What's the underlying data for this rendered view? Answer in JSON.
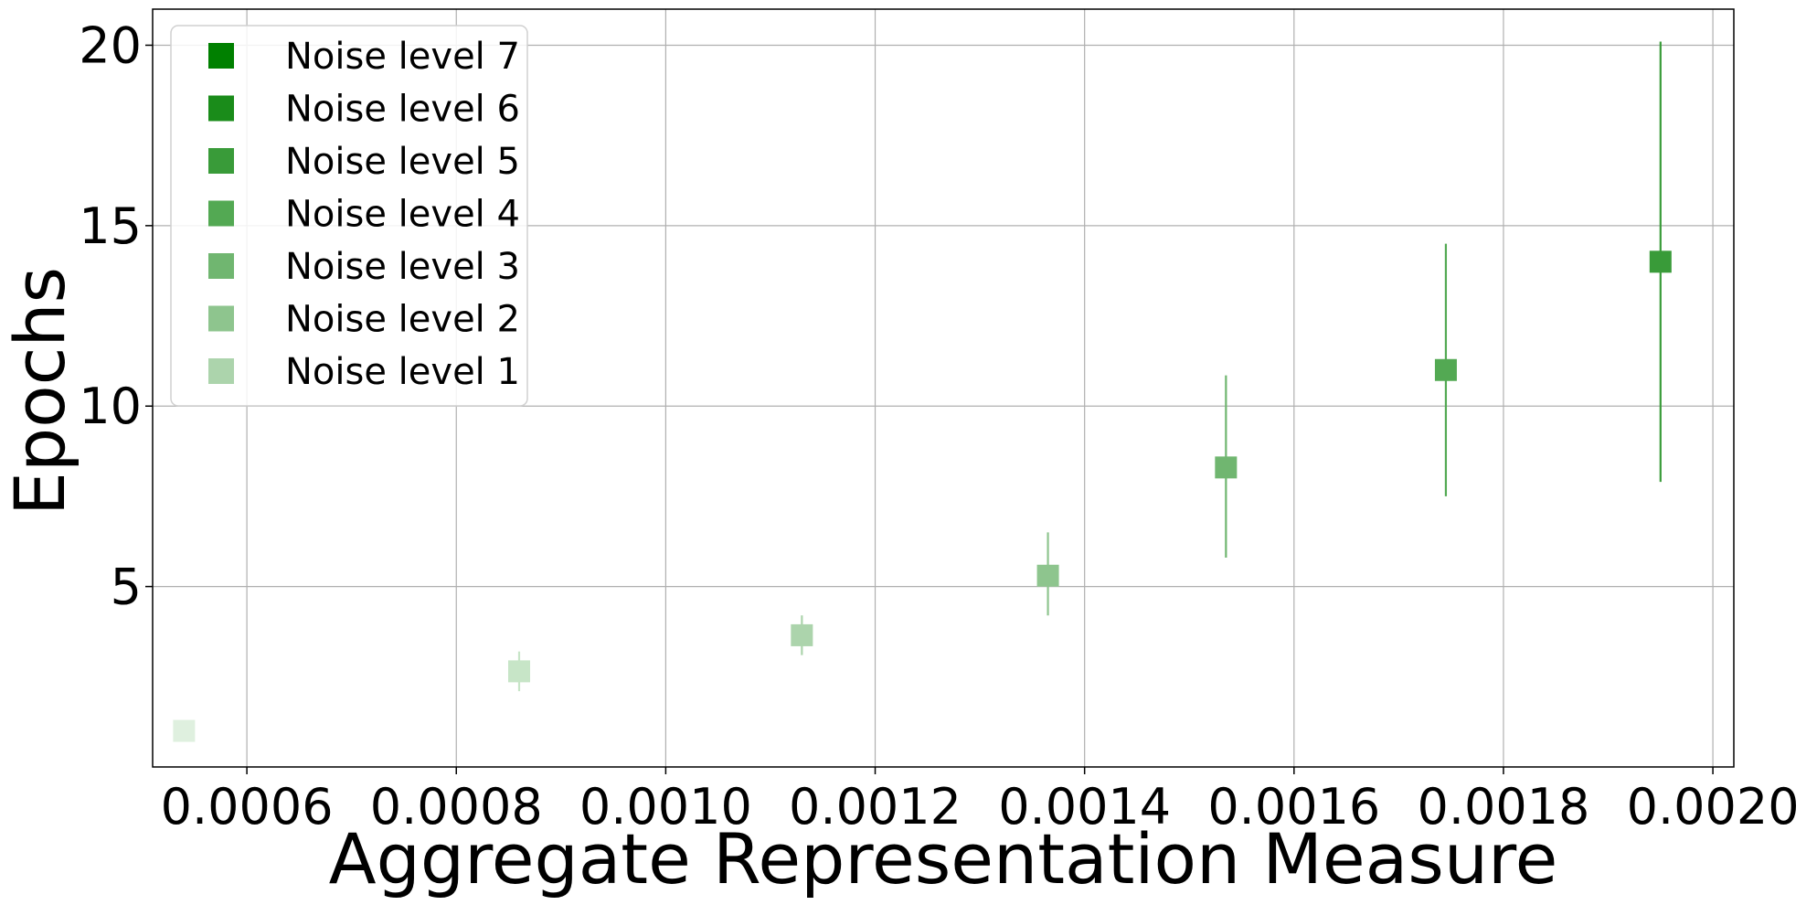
{
  "chart_data": {
    "type": "scatter",
    "title": "",
    "xlabel": "Aggregate Representation Measure",
    "ylabel": "Epochs",
    "xlim": [
      0.00051,
      0.00202
    ],
    "ylim": [
      0,
      21
    ],
    "xticks": [
      "0.0006",
      "0.0008",
      "0.0010",
      "0.0012",
      "0.0014",
      "0.0016",
      "0.0018",
      "0.0020"
    ],
    "yticks": [
      "5",
      "10",
      "15",
      "20"
    ],
    "grid": true,
    "legend_placement": "upper left",
    "series": [
      {
        "name": "Noise level 7",
        "color": "#008000",
        "marker": "square",
        "points": []
      },
      {
        "name": "Noise level 6",
        "color": "#1a8c1a",
        "marker": "square",
        "points": []
      },
      {
        "name": "Noise level 5",
        "color": "#399b39",
        "marker": "square",
        "points": []
      },
      {
        "name": "Noise level 4",
        "color": "#53a953",
        "marker": "square",
        "points": []
      },
      {
        "name": "Noise level 3",
        "color": "#70b670",
        "marker": "square",
        "points": []
      },
      {
        "name": "Noise level 2",
        "color": "#8ec58e",
        "marker": "square",
        "points": []
      },
      {
        "name": "Noise level 1",
        "color": "#acd4ac",
        "marker": "square",
        "points": []
      }
    ],
    "points": [
      {
        "x": 0.00054,
        "y": 1.0,
        "ymin": 1.0,
        "ymax": 1.0,
        "color": "#dff0df"
      },
      {
        "x": 0.00086,
        "y": 2.65,
        "ymin": 2.1,
        "ymax": 3.2,
        "color": "#c7e5c7"
      },
      {
        "x": 0.00113,
        "y": 3.65,
        "ymin": 3.1,
        "ymax": 4.2,
        "color": "#acd4ac"
      },
      {
        "x": 0.001365,
        "y": 5.3,
        "ymin": 4.2,
        "ymax": 6.5,
        "color": "#8ec58e"
      },
      {
        "x": 0.001535,
        "y": 8.3,
        "ymin": 5.8,
        "ymax": 10.85,
        "color": "#70b670"
      },
      {
        "x": 0.001745,
        "y": 11.0,
        "ymin": 7.5,
        "ymax": 14.5,
        "color": "#53a953"
      },
      {
        "x": 0.00195,
        "y": 14.0,
        "ymin": 7.9,
        "ymax": 20.1,
        "color": "#399b39"
      }
    ]
  }
}
